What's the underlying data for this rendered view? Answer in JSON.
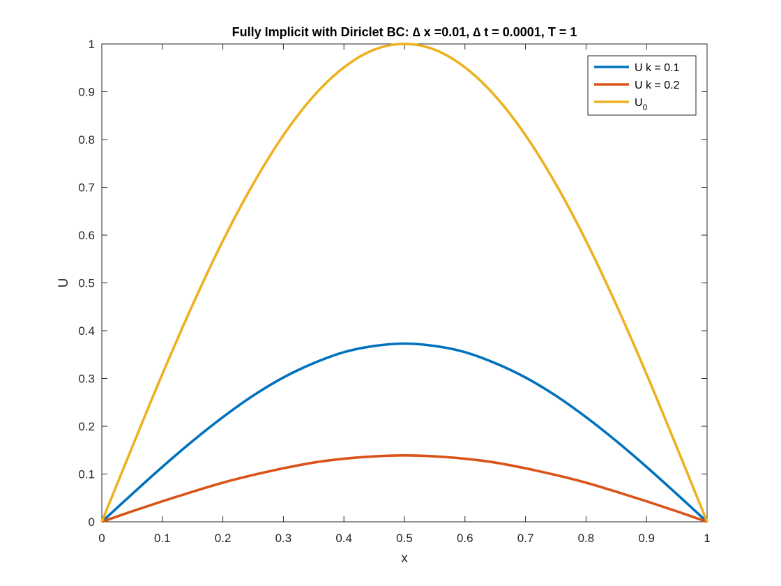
{
  "chart_data": {
    "type": "line",
    "title": "Fully Implicit with Diriclet BC: ∆ x =0.01, ∆ t = 0.0001, T = 1",
    "xlabel": "x",
    "ylabel": "U",
    "xlim": [
      0,
      1
    ],
    "ylim": [
      0,
      1
    ],
    "xticks": [
      0,
      0.1,
      0.2,
      0.3,
      0.4,
      0.5,
      0.6,
      0.7,
      0.8,
      0.9,
      1
    ],
    "xtick_labels": [
      "0",
      "0.1",
      "0.2",
      "0.3",
      "0.4",
      "0.5",
      "0.6",
      "0.7",
      "0.8",
      "0.9",
      "1"
    ],
    "yticks": [
      0,
      0.1,
      0.2,
      0.3,
      0.4,
      0.5,
      0.6,
      0.7,
      0.8,
      0.9,
      1
    ],
    "ytick_labels": [
      "0",
      "0.1",
      "0.2",
      "0.3",
      "0.4",
      "0.5",
      "0.6",
      "0.7",
      "0.8",
      "0.9",
      "1"
    ],
    "grid": false,
    "legend_position": "top-right",
    "x": [
      0,
      0.05,
      0.1,
      0.15,
      0.2,
      0.25,
      0.3,
      0.35,
      0.4,
      0.45,
      0.5,
      0.55,
      0.6,
      0.65,
      0.7,
      0.75,
      0.8,
      0.85,
      0.9,
      0.95,
      1
    ],
    "series": [
      {
        "name": "U k = 0.1",
        "color": "#0072BD",
        "values": [
          0,
          0.058,
          0.115,
          0.169,
          0.219,
          0.264,
          0.302,
          0.332,
          0.355,
          0.368,
          0.373,
          0.368,
          0.355,
          0.332,
          0.302,
          0.264,
          0.219,
          0.169,
          0.115,
          0.058,
          0
        ]
      },
      {
        "name": "U k = 0.2",
        "color": "#D95319",
        "values": [
          0,
          0.022,
          0.043,
          0.063,
          0.082,
          0.098,
          0.112,
          0.124,
          0.132,
          0.137,
          0.139,
          0.137,
          0.132,
          0.124,
          0.112,
          0.098,
          0.082,
          0.063,
          0.043,
          0.022,
          0
        ]
      },
      {
        "name": "U_0",
        "legend_label_main": "U",
        "legend_label_sub": "0",
        "color": "#EDB120",
        "values": [
          0,
          0.156,
          0.309,
          0.454,
          0.588,
          0.707,
          0.809,
          0.891,
          0.951,
          0.988,
          1,
          0.988,
          0.951,
          0.891,
          0.809,
          0.707,
          0.588,
          0.454,
          0.309,
          0.156,
          0
        ]
      }
    ]
  }
}
